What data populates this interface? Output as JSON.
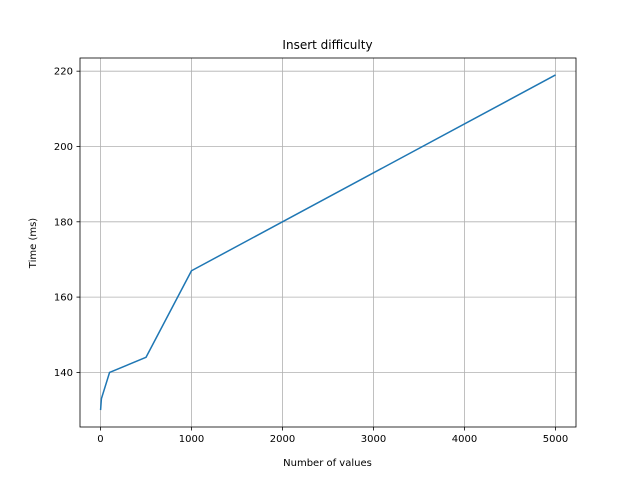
{
  "chart_data": {
    "type": "line",
    "title": "Insert difficulty",
    "xlabel": "Number of values",
    "ylabel": "Time (ms)",
    "xlim": [
      -225,
      5225
    ],
    "ylim": [
      125.5,
      223.5
    ],
    "xticks": [
      0,
      1000,
      2000,
      3000,
      4000,
      5000
    ],
    "yticks": [
      140,
      160,
      180,
      200,
      220
    ],
    "grid": true,
    "series": [
      {
        "color": "#1f77b4",
        "x": [
          1,
          10,
          100,
          500,
          1000,
          5000
        ],
        "y": [
          130,
          133,
          140,
          144,
          167,
          219
        ]
      }
    ]
  }
}
